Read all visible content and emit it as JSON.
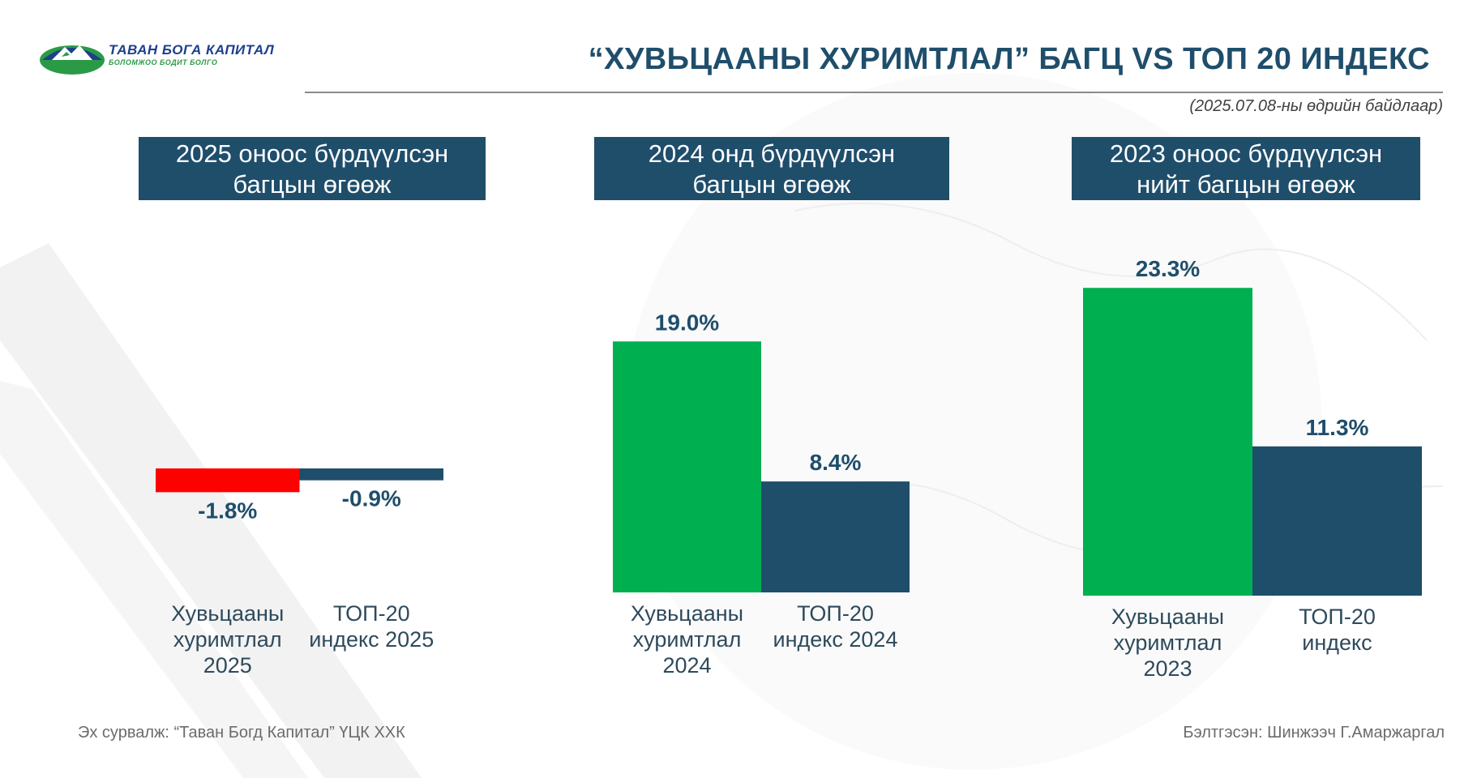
{
  "logo": {
    "name": "ТАВАН БОГА КАПИТАЛ",
    "slogan": "БОЛОМЖОО БОДИТ БОЛГО"
  },
  "header": {
    "title": "“ХУВЬЦААНЫ ХУРИМТЛАЛ” БАГЦ VS ТОП 20 ИНДЕКС",
    "date_note": "(2025.07.08-ны өдрийн байдлаар)"
  },
  "colors": {
    "navy": "#1f4e6b",
    "green": "#00b050",
    "red": "#ff0000",
    "label_text": "#1f4e6b",
    "category_text": "#2e4a5c"
  },
  "chart_data": [
    {
      "type": "bar",
      "title": [
        "2025 оноос бүрдүүлсэн",
        "багцын өгөөж"
      ],
      "categories": [
        [
          "Хувьцааны",
          "хуримтлал",
          "2025"
        ],
        [
          "ТОП-20",
          "индекс 2025"
        ]
      ],
      "values": [
        -1.8,
        -0.9
      ],
      "data_labels": [
        "-1.8%",
        "-0.9%"
      ],
      "colors": [
        "#ff0000",
        "#1f4e6b"
      ],
      "unit": "%"
    },
    {
      "type": "bar",
      "title": [
        "2024 онд бүрдүүлсэн",
        "багцын өгөөж"
      ],
      "categories": [
        [
          "Хувьцааны",
          "хуримтлал",
          "2024"
        ],
        [
          "ТОП-20",
          "индекс 2024"
        ]
      ],
      "values": [
        19.0,
        8.4
      ],
      "data_labels": [
        "19.0%",
        "8.4%"
      ],
      "colors": [
        "#00b050",
        "#1f4e6b"
      ],
      "unit": "%"
    },
    {
      "type": "bar",
      "title": [
        "2023 оноос бүрдүүлсэн",
        "нийт багцын өгөөж"
      ],
      "categories": [
        [
          "Хувьцааны",
          "хуримтлал",
          "2023"
        ],
        [
          "ТОП-20",
          "индекс"
        ]
      ],
      "values": [
        23.3,
        11.3
      ],
      "data_labels": [
        "23.3%",
        "11.3%"
      ],
      "colors": [
        "#00b050",
        "#1f4e6b"
      ],
      "unit": "%"
    }
  ],
  "footer": {
    "source": "Эх сурвалж: “Таван Богд Капитал” ҮЦК ХХК",
    "author": "Бэлтгэсэн: Шинжээч Г.Амаржаргал"
  }
}
